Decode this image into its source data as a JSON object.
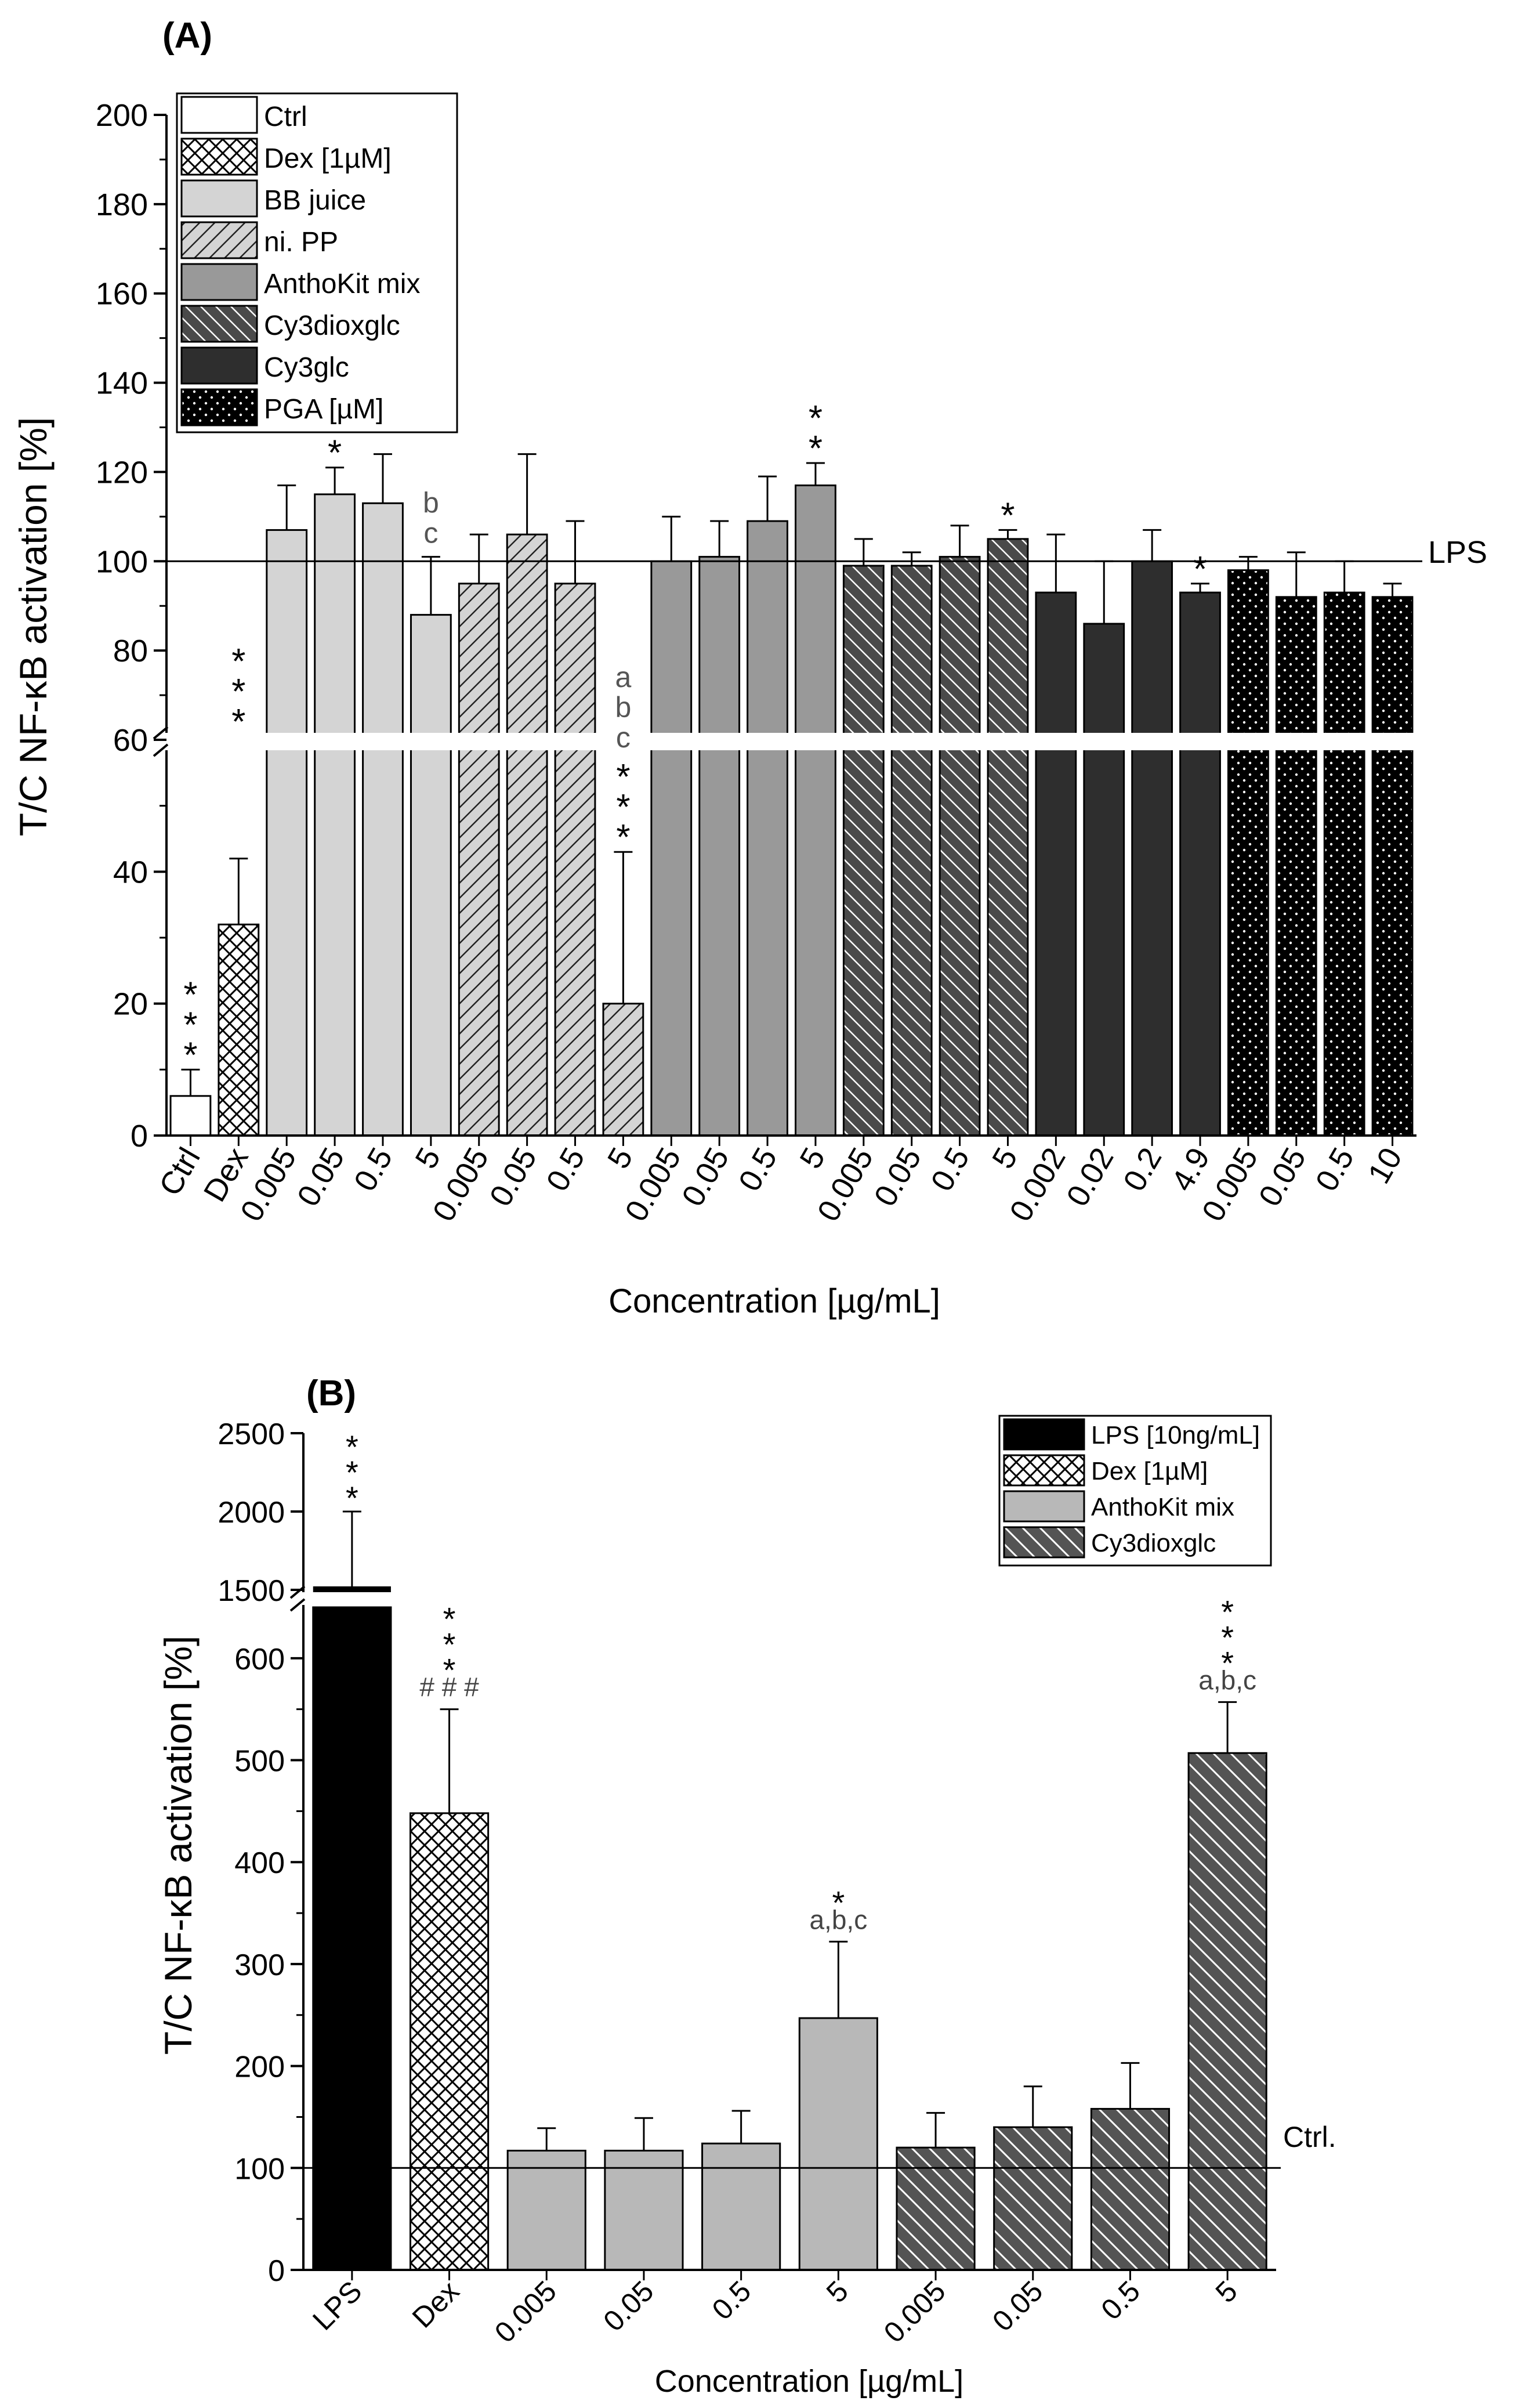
{
  "chart_data": [
    {
      "type": "bar",
      "panel_label": "(A)",
      "ylabel": "T/C NF-κB activation [%]",
      "xlabel": "Concentration [µg/mL]",
      "y_break": [
        60,
        60
      ],
      "ylim": [
        0,
        200
      ],
      "yticks": [
        0,
        20,
        40,
        60,
        80,
        100,
        120,
        140,
        160,
        180,
        200
      ],
      "reference_line": {
        "value": 100,
        "label": "LPS"
      },
      "legend_position": "top-left",
      "legend": [
        {
          "label": "Ctrl",
          "style": "open"
        },
        {
          "label": "Dex [1µM]",
          "style": "crosshatch"
        },
        {
          "label": "BB juice",
          "style": "light"
        },
        {
          "label": "ni. PP",
          "style": "light-diag"
        },
        {
          "label": "AnthoKit mix",
          "style": "mid"
        },
        {
          "label": "Cy3dioxglc",
          "style": "dark-diag"
        },
        {
          "label": "Cy3glc",
          "style": "dark"
        },
        {
          "label": "PGA [µM]",
          "style": "dots"
        }
      ],
      "categories": [
        "Ctrl",
        "Dex",
        "0.005",
        "0.05",
        "0.5",
        "5",
        "0.005",
        "0.05",
        "0.5",
        "5",
        "0.005",
        "0.05",
        "0.5",
        "5",
        "0.005",
        "0.05",
        "0.5",
        "5",
        "0.002",
        "0.02",
        "0.2",
        "4.9",
        "0.005",
        "0.05",
        "0.5",
        "10"
      ],
      "values": [
        6,
        32,
        107,
        115,
        113,
        88,
        95,
        106,
        95,
        20,
        100,
        101,
        109,
        117,
        99,
        99,
        101,
        105,
        93,
        86,
        100,
        93,
        98,
        92,
        93,
        92
      ],
      "errors": [
        4,
        10,
        10,
        6,
        11,
        13,
        11,
        18,
        14,
        23,
        10,
        8,
        10,
        5,
        6,
        3,
        7,
        2,
        13,
        14,
        7,
        2,
        3,
        10,
        7,
        3
      ],
      "series_group": [
        "Ctrl",
        "Dex [1µM]",
        "BB juice",
        "BB juice",
        "BB juice",
        "BB juice",
        "ni. PP",
        "ni. PP",
        "ni. PP",
        "ni. PP",
        "AnthoKit mix",
        "AnthoKit mix",
        "AnthoKit mix",
        "AnthoKit mix",
        "Cy3dioxglc",
        "Cy3dioxglc",
        "Cy3dioxglc",
        "Cy3dioxglc",
        "Cy3glc",
        "Cy3glc",
        "Cy3glc",
        "Cy3glc",
        "PGA [µM]",
        "PGA [µM]",
        "PGA [µM]",
        "PGA [µM]"
      ],
      "annotations": [
        {
          "index": 0,
          "lines": [
            "*",
            "*",
            "*"
          ]
        },
        {
          "index": 1,
          "lines": [
            "*",
            "*",
            "*"
          ]
        },
        {
          "index": 3,
          "lines": [
            "*"
          ]
        },
        {
          "index": 5,
          "lines": [
            "b",
            "c"
          ]
        },
        {
          "index": 9,
          "lines": [
            "a",
            "b",
            "c",
            "*",
            "*",
            "*"
          ]
        },
        {
          "index": 13,
          "lines": [
            "*",
            "*"
          ]
        },
        {
          "index": 17,
          "lines": [
            "*"
          ]
        },
        {
          "index": 21,
          "lines": [
            "*"
          ]
        }
      ]
    },
    {
      "type": "bar",
      "panel_label": "(B)",
      "ylabel": "T/C  NF-κB activation [%]",
      "xlabel": "Concentration [µg/mL]",
      "y_break": [
        650,
        1500
      ],
      "ylim": [
        0,
        2500
      ],
      "yticks": [
        0,
        100,
        200,
        300,
        400,
        500,
        600,
        1500,
        2000,
        2500
      ],
      "reference_line": {
        "value": 100,
        "label": "Ctrl."
      },
      "legend_position": "top-right",
      "legend": [
        {
          "label": "LPS [10ng/mL]",
          "style": "black"
        },
        {
          "label": "Dex [1µM]",
          "style": "crosshatch"
        },
        {
          "label": "AnthoKit mix",
          "style": "light"
        },
        {
          "label": "Cy3dioxglc",
          "style": "dark-diag"
        }
      ],
      "categories": [
        "LPS",
        "Dex",
        "0.005",
        "0.05",
        "0.5",
        "5",
        "0.005",
        "0.05",
        "0.5",
        "5"
      ],
      "values": [
        1500,
        448,
        117,
        117,
        124,
        247,
        120,
        140,
        158,
        507
      ],
      "errors": [
        500,
        102,
        22,
        32,
        32,
        75,
        34,
        40,
        45,
        50
      ],
      "series_group": [
        "LPS [10ng/mL]",
        "Dex [1µM]",
        "AnthoKit mix",
        "AnthoKit mix",
        "AnthoKit mix",
        "AnthoKit mix",
        "Cy3dioxglc",
        "Cy3dioxglc",
        "Cy3dioxglc",
        "Cy3dioxglc"
      ],
      "annotations": [
        {
          "index": 0,
          "lines": [
            "*",
            "*",
            "*"
          ]
        },
        {
          "index": 1,
          "lines": [
            "*",
            "*",
            "*",
            "# # #"
          ]
        },
        {
          "index": 5,
          "lines": [
            "*",
            "a,b,c"
          ]
        },
        {
          "index": 9,
          "lines": [
            "*",
            "*",
            "*",
            "a,b,c"
          ]
        }
      ]
    }
  ],
  "colors": {
    "light": "#d4d4d4",
    "mid": "#999999",
    "dark_diag": "#4a4a4a",
    "dark": "#2e2e2e",
    "black": "#000000",
    "b_light": "#b8b8b8",
    "b_dark": "#545454"
  }
}
